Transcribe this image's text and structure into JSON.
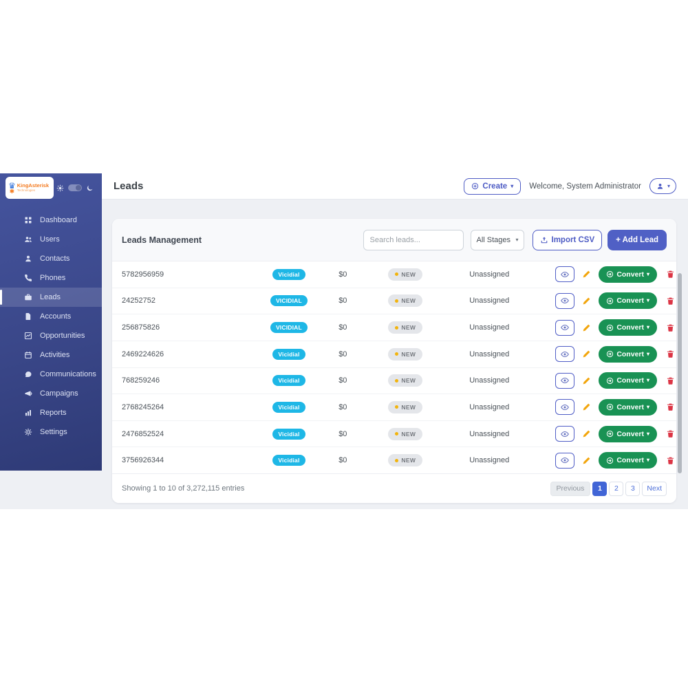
{
  "sidebar": {
    "logo": {
      "brand": "KingAsterisk",
      "tagline": "Technologies"
    },
    "items": [
      {
        "label": "Dashboard",
        "icon": "grid",
        "active": false
      },
      {
        "label": "Users",
        "icon": "users",
        "active": false
      },
      {
        "label": "Contacts",
        "icon": "user",
        "active": false
      },
      {
        "label": "Phones",
        "icon": "phone",
        "active": false
      },
      {
        "label": "Leads",
        "icon": "briefcase",
        "active": true
      },
      {
        "label": "Accounts",
        "icon": "file",
        "active": false
      },
      {
        "label": "Opportunities",
        "icon": "chart",
        "active": false
      },
      {
        "label": "Activities",
        "icon": "calendar",
        "active": false
      },
      {
        "label": "Communications",
        "icon": "chat",
        "active": false
      },
      {
        "label": "Campaigns",
        "icon": "megaphone",
        "active": false
      },
      {
        "label": "Reports",
        "icon": "bars",
        "active": false
      },
      {
        "label": "Settings",
        "icon": "gear",
        "active": false
      }
    ]
  },
  "header": {
    "title": "Leads",
    "create_label": "Create",
    "welcome_text": "Welcome, System Administrator"
  },
  "toolbar": {
    "card_title": "Leads Management",
    "search_placeholder": "Search leads...",
    "stage_filter_value": "All Stages",
    "import_csv_label": "Import CSV",
    "add_lead_label": "+ Add Lead"
  },
  "table": {
    "convert_label": "Convert",
    "rows": [
      {
        "phone": "5782956959",
        "source": "Vicidial",
        "value": "$0",
        "status": "NEW",
        "assigned": "Unassigned"
      },
      {
        "phone": "24252752",
        "source": "VICIDIAL",
        "value": "$0",
        "status": "NEW",
        "assigned": "Unassigned"
      },
      {
        "phone": "256875826",
        "source": "VICIDIAL",
        "value": "$0",
        "status": "NEW",
        "assigned": "Unassigned"
      },
      {
        "phone": "2469224626",
        "source": "Vicidial",
        "value": "$0",
        "status": "NEW",
        "assigned": "Unassigned"
      },
      {
        "phone": "768259246",
        "source": "Vicidial",
        "value": "$0",
        "status": "NEW",
        "assigned": "Unassigned"
      },
      {
        "phone": "2768245264",
        "source": "Vicidial",
        "value": "$0",
        "status": "NEW",
        "assigned": "Unassigned"
      },
      {
        "phone": "2476852524",
        "source": "Vicidial",
        "value": "$0",
        "status": "NEW",
        "assigned": "Unassigned"
      },
      {
        "phone": "3756926344",
        "source": "Vicidial",
        "value": "$0",
        "status": "NEW",
        "assigned": "Unassigned"
      }
    ]
  },
  "footer": {
    "showing_text": "Showing 1 to 10 of 3,272,115 entries",
    "pagination": [
      {
        "label": "Previous",
        "state": "disabled"
      },
      {
        "label": "1",
        "state": "active"
      },
      {
        "label": "2",
        "state": ""
      },
      {
        "label": "3",
        "state": ""
      },
      {
        "label": "Next",
        "state": ""
      }
    ]
  },
  "colors": {
    "sidebar_top": "#45549e",
    "sidebar_bottom": "#2e3a76",
    "accent_indigo": "#4d5bc4",
    "add_button": "#5060c5",
    "source_badge": "#1eb7e6",
    "status_dot": "#f2b40d",
    "convert_green": "#199254",
    "danger_red": "#dc3545",
    "pencil_orange": "#f2a50c",
    "pagination_active": "#4165d6",
    "content_bg": "#eef0f4"
  }
}
